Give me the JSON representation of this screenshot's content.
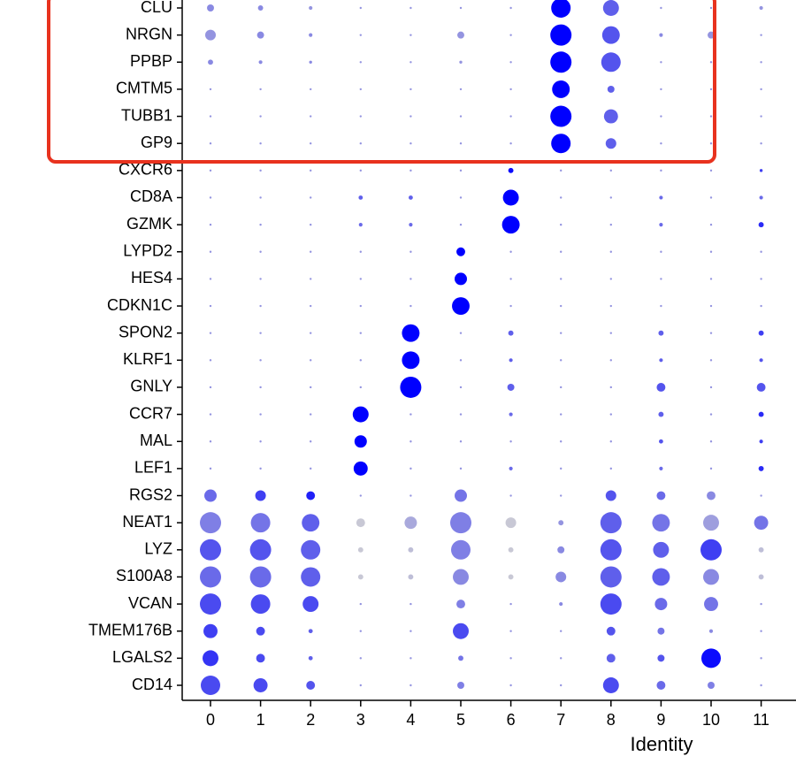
{
  "chart_data": {
    "type": "dotplot",
    "x_label": "Identity",
    "categories": [
      "0",
      "1",
      "2",
      "3",
      "4",
      "5",
      "6",
      "7",
      "8",
      "9",
      "10",
      "11"
    ],
    "color_range": [
      "#d3d3d3",
      "#0000ff"
    ],
    "clim": [
      0,
      1
    ],
    "pctlim": [
      0,
      100
    ],
    "rows": [
      {
        "name": "CLU",
        "pct": [
          11,
          6,
          3,
          1,
          1,
          1,
          1,
          84,
          56,
          1,
          1,
          3
        ],
        "expr": [
          0.35,
          0.35,
          0.3,
          0.3,
          0.3,
          0.3,
          0.3,
          1,
          0.55,
          0.3,
          0.3,
          0.3
        ]
      },
      {
        "name": "NRGN",
        "pct": [
          25,
          11,
          3,
          1,
          1,
          11,
          1,
          100,
          69,
          3,
          11,
          1
        ],
        "expr": [
          0.3,
          0.35,
          0.35,
          0.3,
          0.3,
          0.3,
          0.3,
          1,
          0.6,
          0.35,
          0.3,
          0.3
        ]
      },
      {
        "name": "PPBP",
        "pct": [
          6,
          3,
          2,
          1,
          1,
          2,
          1,
          100,
          84,
          1,
          1,
          1
        ],
        "expr": [
          0.35,
          0.35,
          0.35,
          0.3,
          0.3,
          0.3,
          0.3,
          1,
          0.6,
          0.3,
          0.3,
          0.3
        ]
      },
      {
        "name": "CMTM5",
        "pct": [
          1,
          1,
          1,
          1,
          1,
          1,
          1,
          69,
          11,
          1,
          1,
          1
        ],
        "expr": [
          0.3,
          0.3,
          0.3,
          0.3,
          0.3,
          0.3,
          0.3,
          1,
          0.55,
          0.3,
          0.3,
          0.3
        ]
      },
      {
        "name": "TUBB1",
        "pct": [
          1,
          1,
          1,
          1,
          1,
          1,
          1,
          100,
          44,
          1,
          1,
          1
        ],
        "expr": [
          0.3,
          0.3,
          0.3,
          0.3,
          0.3,
          0.3,
          0.3,
          1,
          0.55,
          0.3,
          0.3,
          0.3
        ]
      },
      {
        "name": "GP9",
        "pct": [
          1,
          1,
          1,
          1,
          1,
          1,
          1,
          84,
          25,
          1,
          1,
          1
        ],
        "expr": [
          0.3,
          0.3,
          0.3,
          0.3,
          0.3,
          0.3,
          0.3,
          1,
          0.55,
          0.3,
          0.3,
          0.3
        ]
      },
      {
        "name": "CXCR6",
        "pct": [
          1,
          1,
          1,
          1,
          1,
          1,
          6,
          1,
          1,
          1,
          1,
          2
        ],
        "expr": [
          0.3,
          0.3,
          0.3,
          0.3,
          0.3,
          0.3,
          0.95,
          0.3,
          0.3,
          0.3,
          0.3,
          0.7
        ]
      },
      {
        "name": "CD8A",
        "pct": [
          1,
          1,
          1,
          4,
          4,
          1,
          56,
          1,
          1,
          3,
          1,
          3
        ],
        "expr": [
          0.3,
          0.3,
          0.3,
          0.55,
          0.55,
          0.3,
          1,
          0.3,
          0.3,
          0.5,
          0.3,
          0.5
        ]
      },
      {
        "name": "GZMK",
        "pct": [
          1,
          1,
          1,
          3,
          3,
          1,
          69,
          1,
          1,
          3,
          1,
          6
        ],
        "expr": [
          0.3,
          0.3,
          0.3,
          0.5,
          0.5,
          0.3,
          1,
          0.3,
          0.3,
          0.5,
          0.3,
          0.8
        ]
      },
      {
        "name": "LYPD2",
        "pct": [
          1,
          1,
          1,
          1,
          1,
          17,
          1,
          1,
          1,
          1,
          1,
          1
        ],
        "expr": [
          0.3,
          0.3,
          0.3,
          0.3,
          0.3,
          1,
          0.3,
          0.3,
          0.3,
          0.3,
          0.3,
          0.3
        ]
      },
      {
        "name": "HES4",
        "pct": [
          1,
          1,
          1,
          1,
          1,
          34,
          1,
          1,
          1,
          1,
          1,
          1
        ],
        "expr": [
          0.3,
          0.3,
          0.3,
          0.3,
          0.3,
          1,
          0.3,
          0.3,
          0.3,
          0.3,
          0.3,
          0.3
        ]
      },
      {
        "name": "CDKN1C",
        "pct": [
          1,
          1,
          1,
          1,
          1,
          69,
          1,
          1,
          1,
          1,
          1,
          1
        ],
        "expr": [
          0.3,
          0.3,
          0.3,
          0.3,
          0.3,
          1,
          0.3,
          0.3,
          0.3,
          0.3,
          0.3,
          0.3
        ]
      },
      {
        "name": "SPON2",
        "pct": [
          1,
          1,
          1,
          1,
          69,
          1,
          6,
          1,
          1,
          6,
          1,
          6
        ],
        "expr": [
          0.3,
          0.3,
          0.3,
          0.3,
          1,
          0.3,
          0.55,
          0.3,
          0.3,
          0.55,
          0.3,
          0.7
        ]
      },
      {
        "name": "KLRF1",
        "pct": [
          1,
          1,
          1,
          1,
          69,
          1,
          3,
          1,
          1,
          3,
          1,
          3
        ],
        "expr": [
          0.3,
          0.3,
          0.3,
          0.3,
          1,
          0.3,
          0.55,
          0.3,
          0.3,
          0.55,
          0.3,
          0.6
        ]
      },
      {
        "name": "GNLY",
        "pct": [
          1,
          1,
          1,
          1,
          100,
          1,
          11,
          1,
          1,
          17,
          1,
          17
        ],
        "expr": [
          0.3,
          0.3,
          0.3,
          0.3,
          1,
          0.3,
          0.55,
          0.3,
          0.3,
          0.6,
          0.3,
          0.6
        ]
      },
      {
        "name": "CCR7",
        "pct": [
          1,
          1,
          1,
          56,
          1,
          1,
          3,
          1,
          1,
          6,
          1,
          6
        ],
        "expr": [
          0.3,
          0.3,
          0.3,
          1,
          0.3,
          0.3,
          0.5,
          0.3,
          0.3,
          0.55,
          0.3,
          0.8
        ]
      },
      {
        "name": "MAL",
        "pct": [
          1,
          1,
          1,
          34,
          1,
          1,
          1,
          1,
          1,
          4,
          1,
          3
        ],
        "expr": [
          0.3,
          0.3,
          0.3,
          1,
          0.3,
          0.3,
          0.3,
          0.3,
          0.3,
          0.6,
          0.3,
          0.7
        ]
      },
      {
        "name": "LEF1",
        "pct": [
          1,
          1,
          1,
          44,
          1,
          1,
          3,
          1,
          1,
          3,
          1,
          6
        ],
        "expr": [
          0.3,
          0.3,
          0.3,
          1,
          0.3,
          0.3,
          0.5,
          0.3,
          0.3,
          0.5,
          0.3,
          0.8
        ]
      },
      {
        "name": "RGS2",
        "pct": [
          34,
          25,
          17,
          1,
          1,
          34,
          1,
          1,
          25,
          17,
          17,
          1
        ],
        "expr": [
          0.5,
          0.7,
          0.85,
          0.3,
          0.3,
          0.45,
          0.3,
          0.3,
          0.6,
          0.5,
          0.35,
          0.3
        ]
      },
      {
        "name": "NEAT1",
        "pct": [
          100,
          84,
          69,
          17,
          34,
          100,
          25,
          6,
          100,
          69,
          56,
          44
        ],
        "expr": [
          0.4,
          0.45,
          0.55,
          0.05,
          0.2,
          0.4,
          0.05,
          0.3,
          0.55,
          0.45,
          0.25,
          0.45
        ]
      },
      {
        "name": "LYZ",
        "pct": [
          100,
          100,
          84,
          6,
          6,
          84,
          6,
          11,
          100,
          56,
          100,
          6
        ],
        "expr": [
          0.6,
          0.6,
          0.55,
          0.05,
          0.1,
          0.4,
          0.05,
          0.35,
          0.6,
          0.55,
          0.7,
          0.1
        ]
      },
      {
        "name": "S100A8",
        "pct": [
          100,
          100,
          84,
          6,
          6,
          56,
          6,
          25,
          100,
          69,
          56,
          6
        ],
        "expr": [
          0.5,
          0.5,
          0.55,
          0.05,
          0.1,
          0.35,
          0.05,
          0.35,
          0.55,
          0.55,
          0.35,
          0.1
        ]
      },
      {
        "name": "VCAN",
        "pct": [
          100,
          84,
          56,
          1,
          1,
          17,
          1,
          3,
          100,
          34,
          44,
          1
        ],
        "expr": [
          0.65,
          0.65,
          0.65,
          0.3,
          0.3,
          0.4,
          0.3,
          0.35,
          0.65,
          0.5,
          0.45,
          0.3
        ]
      },
      {
        "name": "TMEM176B",
        "pct": [
          44,
          17,
          4,
          1,
          1,
          56,
          1,
          1,
          17,
          11,
          3,
          1
        ],
        "expr": [
          0.7,
          0.65,
          0.55,
          0.3,
          0.3,
          0.65,
          0.3,
          0.3,
          0.6,
          0.45,
          0.35,
          0.3
        ]
      },
      {
        "name": "LGALS2",
        "pct": [
          56,
          17,
          4,
          1,
          1,
          6,
          1,
          1,
          17,
          11,
          84,
          1
        ],
        "expr": [
          0.75,
          0.65,
          0.55,
          0.3,
          0.3,
          0.45,
          0.3,
          0.3,
          0.55,
          0.6,
          0.95,
          0.3
        ]
      },
      {
        "name": "CD14",
        "pct": [
          84,
          44,
          17,
          1,
          1,
          11,
          1,
          1,
          56,
          17,
          11,
          1
        ],
        "expr": [
          0.65,
          0.65,
          0.6,
          0.3,
          0.3,
          0.4,
          0.3,
          0.3,
          0.65,
          0.5,
          0.4,
          0.3
        ]
      }
    ]
  }
}
